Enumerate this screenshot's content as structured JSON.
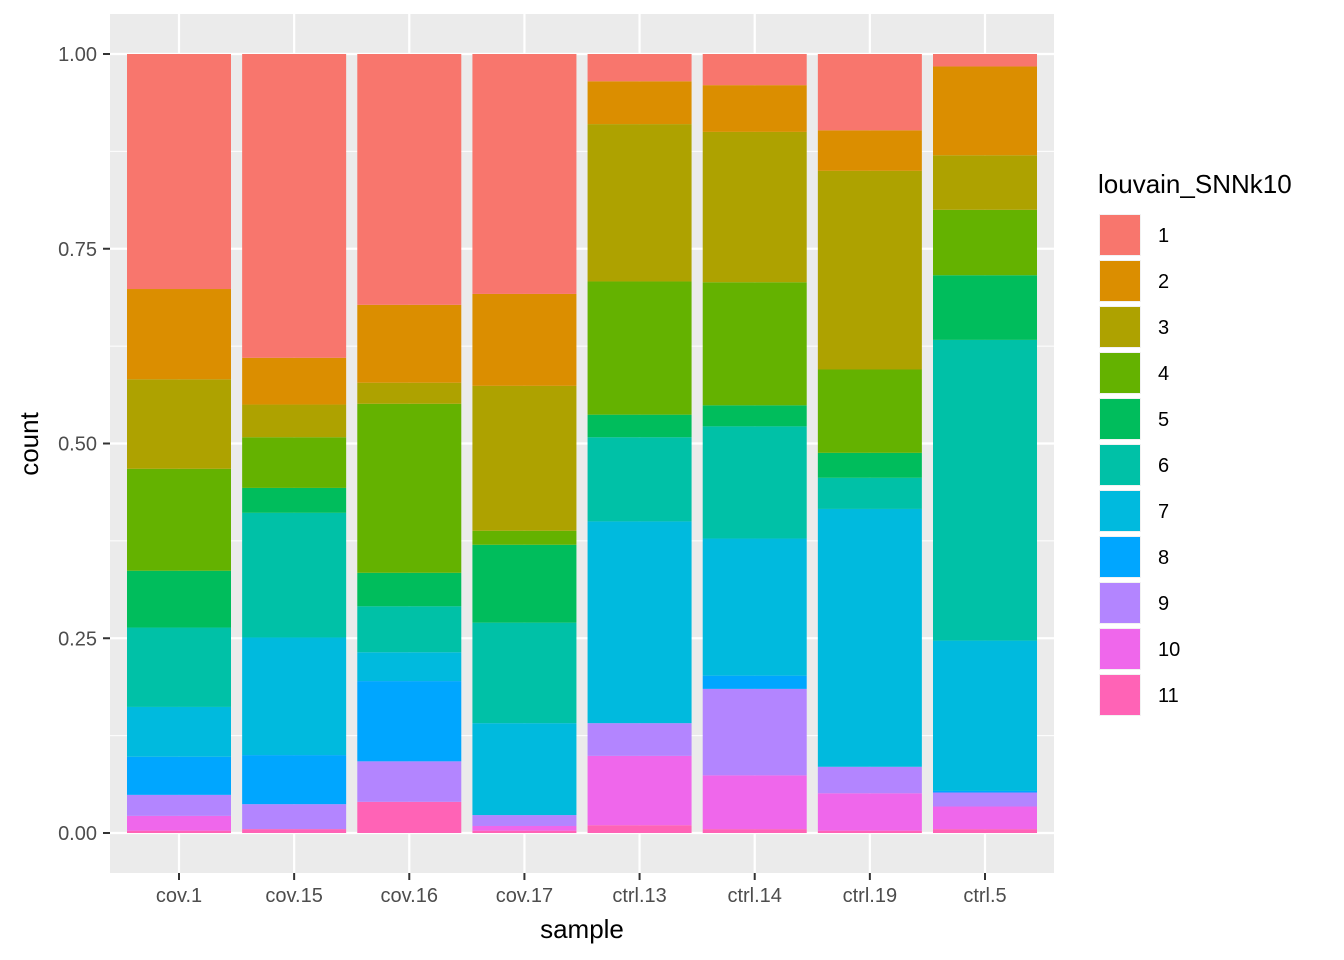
{
  "chart_data": {
    "type": "bar",
    "stacked": true,
    "xlabel": "sample",
    "ylabel": "count",
    "ylim": [
      0,
      1
    ],
    "y_ticks": [
      "0.00",
      "0.25",
      "0.50",
      "0.75",
      "1.00"
    ],
    "grid": true,
    "legend": {
      "title": "louvain_SNNk10",
      "placement": "right"
    },
    "categories": [
      "cov.1",
      "cov.15",
      "cov.16",
      "cov.17",
      "ctrl.13",
      "ctrl.14",
      "ctrl.19",
      "ctrl.5"
    ],
    "series": [
      {
        "name": "1",
        "color": "#F8766D",
        "values": [
          0.302,
          0.39,
          0.322,
          0.308,
          0.035,
          0.04,
          0.098,
          0.016
        ]
      },
      {
        "name": "2",
        "color": "#DB8E00",
        "values": [
          0.116,
          0.06,
          0.1,
          0.118,
          0.055,
          0.06,
          0.052,
          0.114
        ]
      },
      {
        "name": "3",
        "color": "#AEA200",
        "values": [
          0.115,
          0.042,
          0.027,
          0.186,
          0.202,
          0.193,
          0.255,
          0.07
        ]
      },
      {
        "name": "4",
        "color": "#64B200",
        "values": [
          0.131,
          0.065,
          0.217,
          0.018,
          0.171,
          0.158,
          0.107,
          0.084
        ]
      },
      {
        "name": "5",
        "color": "#00BD5C",
        "values": [
          0.073,
          0.032,
          0.043,
          0.1,
          0.029,
          0.027,
          0.032,
          0.083
        ]
      },
      {
        "name": "6",
        "color": "#00C1A7",
        "values": [
          0.102,
          0.16,
          0.059,
          0.129,
          0.108,
          0.144,
          0.04,
          0.386
        ]
      },
      {
        "name": "7",
        "color": "#00BADE",
        "values": [
          0.064,
          0.151,
          0.037,
          0.118,
          0.259,
          0.176,
          0.331,
          0.193
        ]
      },
      {
        "name": "8",
        "color": "#00A6FF",
        "values": [
          0.049,
          0.063,
          0.103,
          0.0,
          0.0,
          0.017,
          0.0,
          0.002
        ]
      },
      {
        "name": "9",
        "color": "#B385FF",
        "values": [
          0.027,
          0.032,
          0.052,
          0.014,
          0.042,
          0.111,
          0.034,
          0.018
        ]
      },
      {
        "name": "10",
        "color": "#EF67EB",
        "values": [
          0.019,
          0.0,
          0.0,
          0.006,
          0.089,
          0.069,
          0.048,
          0.029
        ]
      },
      {
        "name": "11",
        "color": "#FF63B6",
        "values": [
          0.003,
          0.005,
          0.04,
          0.003,
          0.01,
          0.005,
          0.003,
          0.005
        ]
      }
    ]
  }
}
